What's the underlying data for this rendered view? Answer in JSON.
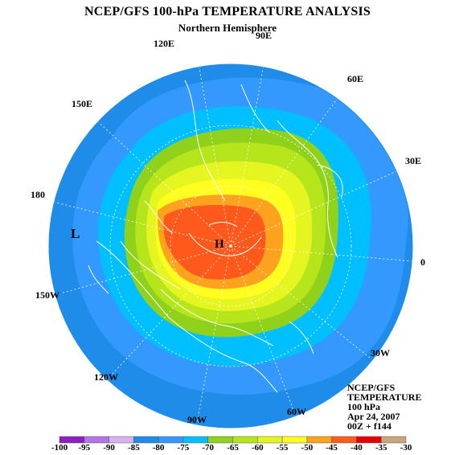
{
  "header": {
    "title": "NCEP/GFS 100-hPa TEMPERATURE ANALYSIS",
    "subtitle": "Northern Hemisphere"
  },
  "longitude_labels": [
    "120E",
    "90E",
    "60E",
    "150E",
    "30E",
    "180",
    "0",
    "150W",
    "30W",
    "120W",
    "90W",
    "60W"
  ],
  "pressure_markers": {
    "low": "L",
    "high": "H"
  },
  "info_box": {
    "line1": "NCEP/GFS",
    "line2": "TEMPERATURE",
    "line3": "100 hPa",
    "line4": "Apr 24, 2007",
    "line5": "00Z + f144"
  },
  "colorbar": {
    "labels": [
      "-100",
      "-95",
      "-90",
      "-85",
      "-80",
      "-75",
      "-70",
      "-65",
      "-60",
      "-55",
      "-50",
      "-45",
      "-40",
      "-35",
      "-30"
    ],
    "colors": [
      "#8b1fc2",
      "#b175e6",
      "#d9b0f0",
      "#1e8ce8",
      "#3399ff",
      "#00bfff",
      "#8fd11b",
      "#b7e51b",
      "#e5f51f",
      "#ffff1f",
      "#ffa31f",
      "#ff5a1b",
      "#e60000",
      "#c9a77a",
      "#8c5a3a"
    ]
  },
  "colors": {
    "land_outline": "#ffffff",
    "grid": "#ffffff"
  }
}
